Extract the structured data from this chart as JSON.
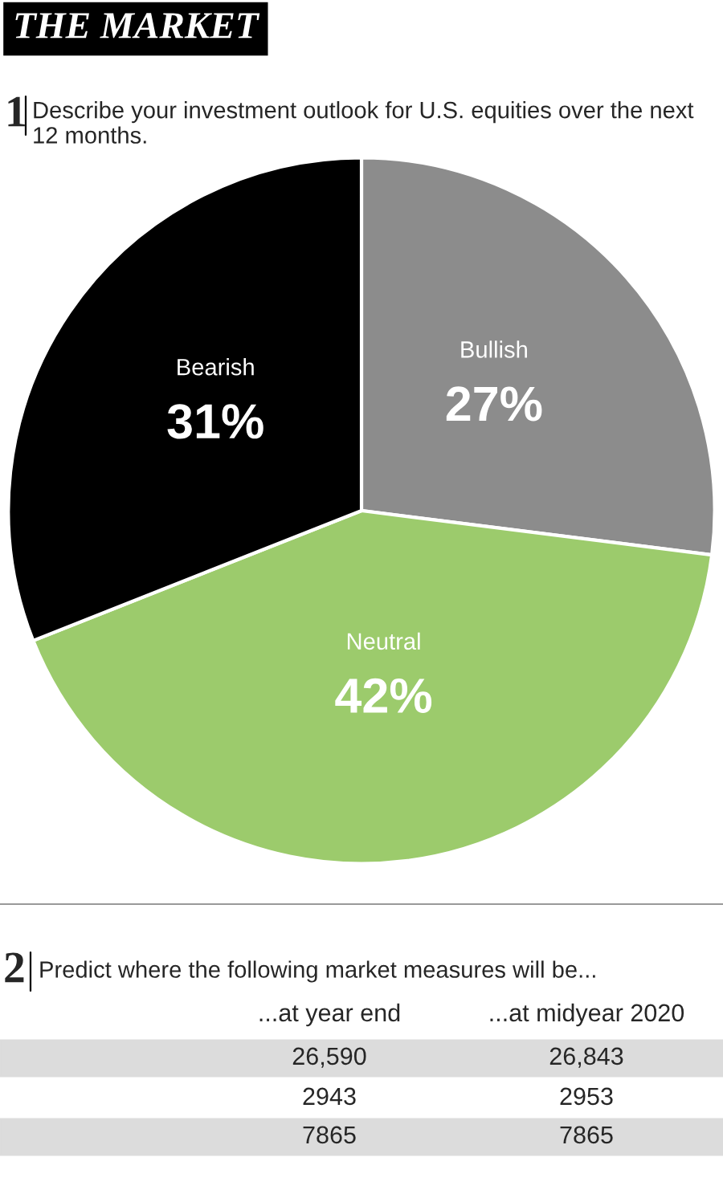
{
  "chart_data": [
    {
      "type": "pie",
      "title": "THE MARKET",
      "subtitle": "Describe your investment outlook for U.S. equities over the next 12 months.",
      "annotations": [
        "1"
      ],
      "categories": [
        "Bullish",
        "Neutral",
        "Bearish"
      ],
      "values": [
        27,
        42,
        31
      ],
      "value_labels": [
        "27%",
        "42%",
        "31%"
      ],
      "colors": [
        "#8c8c8c",
        "#9ccb6c",
        "#000000"
      ],
      "legend": false
    },
    {
      "type": "other",
      "title": "Predict where the following market measures will be...",
      "annotations": [
        "2",
        "...at year end",
        "...at midyear 2020",
        "26,590",
        "26,843",
        "2943",
        "2953",
        "7865",
        "7865"
      ]
    }
  ]
}
